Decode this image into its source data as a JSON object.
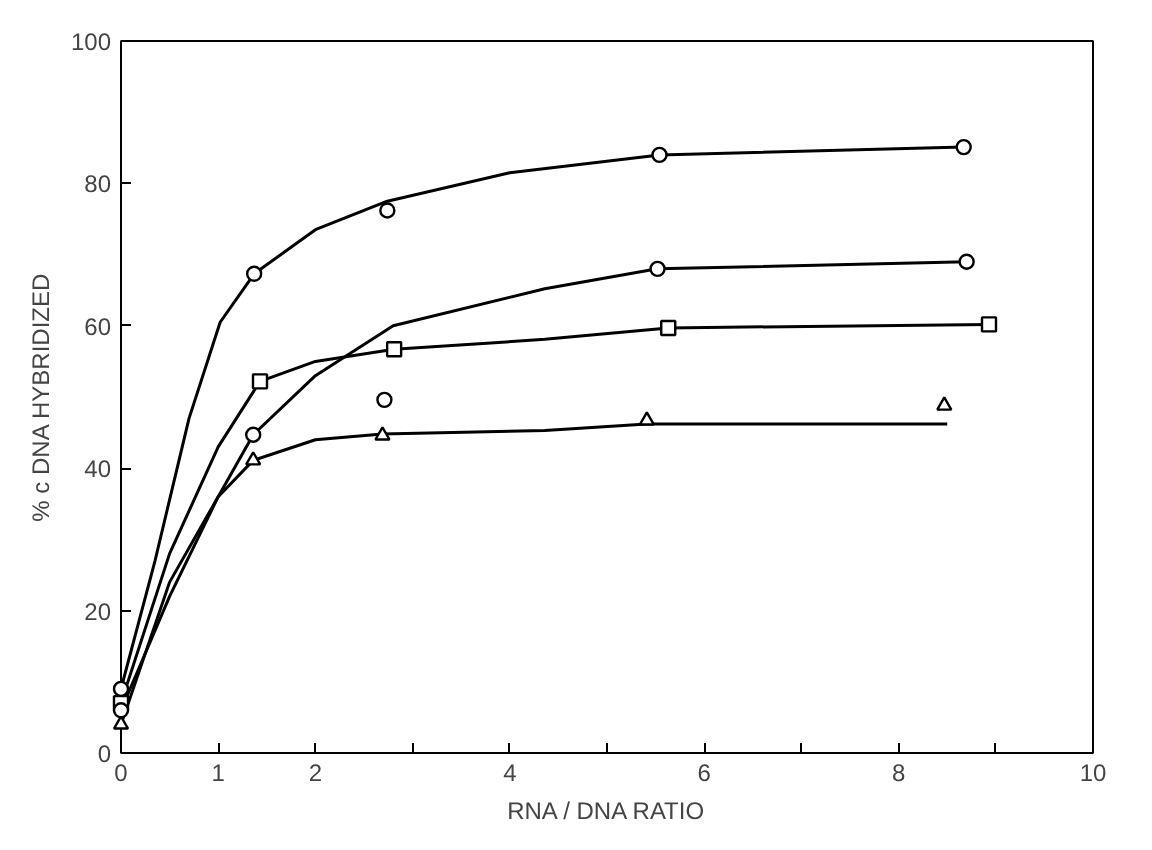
{
  "chart_data": {
    "type": "scatter",
    "xlabel": "RNA / DNA RATIO",
    "ylabel": "% c DNA HYBRIDIZED",
    "xlim": [
      0,
      10
    ],
    "ylim": [
      0,
      100
    ],
    "xticks": [
      0,
      1,
      2,
      {
        "value": 3,
        "label": null
      },
      4,
      {
        "value": 5,
        "label": null
      },
      6,
      {
        "value": 7,
        "label": null
      },
      8,
      {
        "value": 9,
        "label": null
      },
      10
    ],
    "yticks": [
      0,
      20,
      40,
      60,
      80,
      100
    ],
    "grid": false,
    "series": [
      {
        "marker": "circle",
        "color": "#000000",
        "x": [
          0,
          1.37,
          2.74,
          5.54,
          8.67
        ],
        "values": [
          9,
          67.3,
          76.2,
          84,
          85.1
        ]
      },
      {
        "marker": "circle",
        "color": "#000000",
        "x": [
          0,
          1.36,
          2.71,
          5.52,
          8.7
        ],
        "values": [
          6,
          44.7,
          49.6,
          68,
          69
        ]
      },
      {
        "marker": "square",
        "color": "#000000",
        "x": [
          0,
          1.43,
          2.81,
          5.63,
          8.93
        ],
        "values": [
          7,
          52.2,
          56.7,
          59.7,
          60.2
        ]
      },
      {
        "marker": "triangle",
        "color": "#000000",
        "x": [
          0,
          1.36,
          2.69,
          5.41,
          8.47
        ],
        "values": [
          4,
          41.1,
          44.6,
          46.7,
          48.8
        ]
      },
      {
        "type": "line",
        "color": "#000000",
        "x": [
          0,
          0.35,
          0.7,
          1.02,
          1.37,
          2,
          2.74,
          4,
          5.54,
          8.67
        ],
        "values": [
          9,
          27,
          47,
          60.5,
          67.3,
          73.5,
          77.5,
          81.5,
          84,
          85.1
        ]
      },
      {
        "type": "line",
        "color": "#000000",
        "x": [
          0,
          0.5,
          1,
          1.43,
          2,
          2.81,
          4.36,
          5.63,
          8.93
        ],
        "values": [
          7,
          28,
          43,
          52.2,
          55,
          56.7,
          58.1,
          59.7,
          60.2
        ]
      },
      {
        "type": "line",
        "color": "#000000",
        "x": [
          0,
          0.5,
          1,
          1.36,
          2,
          2.8,
          4.36,
          5.52,
          8.7
        ],
        "values": [
          6,
          22,
          36,
          44.7,
          53,
          60,
          65.2,
          68,
          69
        ]
      },
      {
        "type": "line",
        "color": "#000000",
        "x": [
          0,
          0.5,
          1,
          1.36,
          2,
          2.69,
          4.36,
          5.41,
          8.5
        ],
        "values": [
          4,
          24,
          36,
          41.1,
          44,
          44.8,
          45.3,
          46.2,
          46.2
        ]
      }
    ]
  }
}
